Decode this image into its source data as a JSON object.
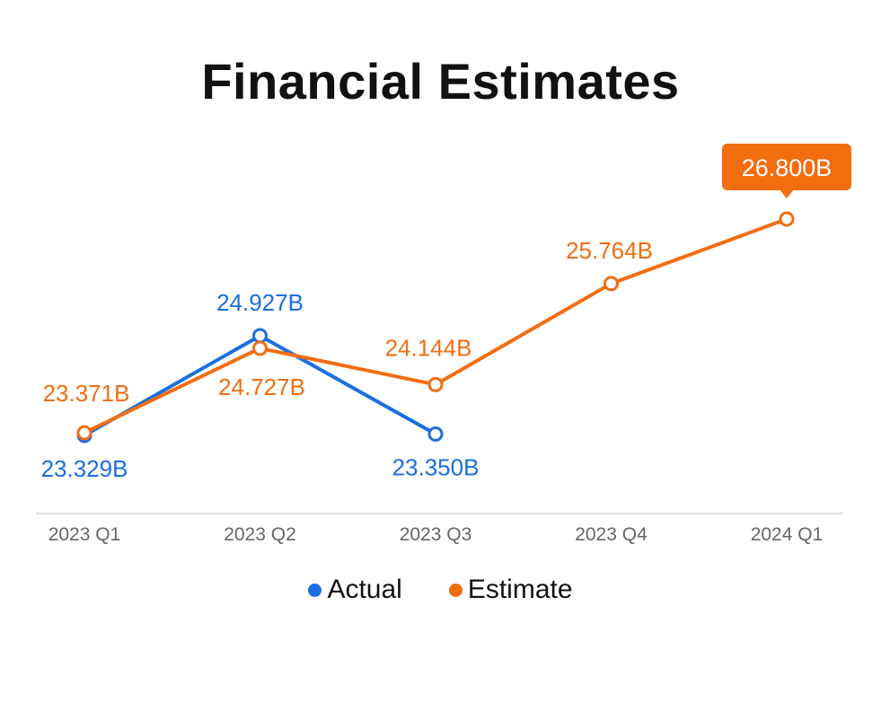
{
  "chart_data": {
    "type": "line",
    "title": "Financial Estimates",
    "categories": [
      "2023 Q1",
      "2023 Q2",
      "2023 Q3",
      "2023 Q4",
      "2024 Q1"
    ],
    "series": [
      {
        "name": "Actual",
        "color": "#1a6fe0",
        "values": [
          23.329,
          24.927,
          23.35,
          null,
          null
        ],
        "labels": [
          "23.329B",
          "24.927B",
          "23.350B",
          null,
          null
        ]
      },
      {
        "name": "Estimate",
        "color": "#f26d10",
        "values": [
          23.371,
          24.727,
          24.144,
          25.764,
          26.8
        ],
        "labels": [
          "23.371B",
          "24.727B",
          "24.144B",
          "25.764B",
          "26.800B"
        ]
      }
    ],
    "highlight": {
      "series": "Estimate",
      "index": 4,
      "label": "26.800B"
    },
    "ylabel": "",
    "xlabel": "",
    "legend_position": "bottom-center",
    "grid": false
  }
}
